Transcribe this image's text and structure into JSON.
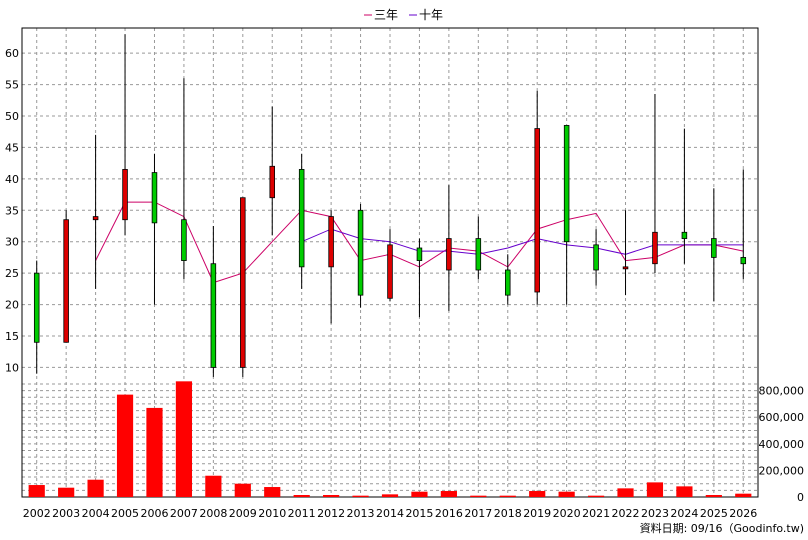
{
  "chart_data": {
    "type": "candlestick",
    "legend": {
      "placement": "top-center",
      "entries": [
        {
          "label": "三年",
          "color": "#cc0066"
        },
        {
          "label": "十年",
          "color": "#6600cc"
        }
      ]
    },
    "colors": {
      "up": "#dd0000",
      "down": "#00cc00",
      "wick": "#000000",
      "volume": "#ff0000",
      "grid": "#999999"
    },
    "categories": [
      "2002",
      "2003",
      "2004",
      "2005",
      "2006",
      "2007",
      "2008",
      "2009",
      "2010",
      "2011",
      "2012",
      "2013",
      "2014",
      "2015",
      "2016",
      "2017",
      "2018",
      "2019",
      "2020",
      "2021",
      "2022",
      "2023",
      "2024",
      "2025",
      "2026"
    ],
    "ohlc": [
      {
        "year": "2002",
        "open": 25.0,
        "high": 27.0,
        "low": 9.0,
        "close": 14.0
      },
      {
        "year": "2003",
        "open": 14.0,
        "high": 35.0,
        "low": 14.0,
        "close": 33.5
      },
      {
        "year": "2004",
        "open": 33.5,
        "high": 47.0,
        "low": 22.5,
        "close": 34.0
      },
      {
        "year": "2005",
        "open": 33.5,
        "high": 63.0,
        "low": 31.0,
        "close": 41.5
      },
      {
        "year": "2006",
        "open": 41.0,
        "high": 44.0,
        "low": 20.0,
        "close": 33.0
      },
      {
        "year": "2007",
        "open": 33.5,
        "high": 56.0,
        "low": 24.0,
        "close": 27.0
      },
      {
        "year": "2008",
        "open": 26.5,
        "high": 32.5,
        "low": 8.5,
        "close": 10.0
      },
      {
        "year": "2009",
        "open": 10.0,
        "high": 37.0,
        "low": 8.5,
        "close": 37.0
      },
      {
        "year": "2010",
        "open": 37.0,
        "high": 51.5,
        "low": 31.0,
        "close": 42.0
      },
      {
        "year": "2011",
        "open": 41.5,
        "high": 44.0,
        "low": 22.5,
        "close": 26.0
      },
      {
        "year": "2012",
        "open": 26.0,
        "high": 35.0,
        "low": 17.0,
        "close": 34.0
      },
      {
        "year": "2013",
        "open": 35.0,
        "high": 36.0,
        "low": 19.5,
        "close": 21.5
      },
      {
        "year": "2014",
        "open": 21.0,
        "high": 32.0,
        "low": 20.5,
        "close": 29.5
      },
      {
        "year": "2015",
        "open": 29.0,
        "high": 30.5,
        "low": 18.0,
        "close": 27.0
      },
      {
        "year": "2016",
        "open": 25.5,
        "high": 39.0,
        "low": 19.0,
        "close": 30.5
      },
      {
        "year": "2017",
        "open": 30.5,
        "high": 34.0,
        "low": 24.0,
        "close": 25.5
      },
      {
        "year": "2018",
        "open": 25.5,
        "high": 28.0,
        "low": 20.0,
        "close": 21.5
      },
      {
        "year": "2019",
        "open": 22.0,
        "high": 54.0,
        "low": 20.0,
        "close": 48.0
      },
      {
        "year": "2020",
        "open": 48.5,
        "high": 48.5,
        "low": 20.0,
        "close": 30.0
      },
      {
        "year": "2021",
        "open": 29.5,
        "high": 32.0,
        "low": 23.0,
        "close": 25.5
      },
      {
        "year": "2022",
        "open": 26.0,
        "high": 35.0,
        "low": 21.5,
        "close": 26.0
      },
      {
        "year": "2023",
        "open": 26.5,
        "high": 53.5,
        "low": 25.0,
        "close": 31.5
      },
      {
        "year": "2024",
        "open": 31.5,
        "high": 48.0,
        "low": 26.5,
        "close": 30.5
      },
      {
        "year": "2025",
        "open": 30.5,
        "high": 38.5,
        "low": 20.5,
        "close": 27.5
      },
      {
        "year": "2026",
        "open": 27.5,
        "high": 41.5,
        "low": 24.0,
        "close": 26.5
      }
    ],
    "series": [
      {
        "name": "三年",
        "color": "#cc0066",
        "values": [
          null,
          null,
          27.0,
          36.3,
          36.3,
          34.0,
          23.5,
          25.0,
          30.0,
          35.0,
          34.0,
          27.0,
          28.0,
          26.0,
          29.0,
          28.5,
          26.0,
          32.0,
          33.5,
          34.5,
          27.0,
          27.5,
          29.5,
          29.5,
          28.5
        ]
      },
      {
        "name": "十年",
        "color": "#6600cc",
        "values": [
          null,
          null,
          null,
          null,
          null,
          null,
          null,
          null,
          null,
          30.0,
          32.0,
          30.5,
          30.0,
          28.5,
          28.5,
          28.0,
          29.0,
          30.5,
          29.5,
          29.0,
          28.0,
          29.5,
          29.5,
          29.5,
          29.5
        ]
      }
    ],
    "volume": [
      90000,
      70000,
      130000,
      770000,
      670000,
      870000,
      160000,
      100000,
      75000,
      15000,
      15000,
      10000,
      20000,
      40000,
      45000,
      10000,
      10000,
      45000,
      40000,
      10000,
      65000,
      110000,
      80000,
      15000,
      25000
    ],
    "price_axis": {
      "ylim": [
        8,
        64
      ],
      "ticks": [
        10,
        15,
        20,
        25,
        30,
        35,
        40,
        45,
        50,
        55,
        60
      ]
    },
    "volume_axis": {
      "ylim": [
        0,
        880000
      ],
      "ticks": [
        0,
        200000,
        400000,
        600000,
        800000
      ],
      "tick_labels": [
        "0",
        "200,000",
        "400,000",
        "600,000",
        "800,000"
      ]
    },
    "grid": true,
    "footer": "資料日期: 09/16（Goodinfo.tw)"
  }
}
